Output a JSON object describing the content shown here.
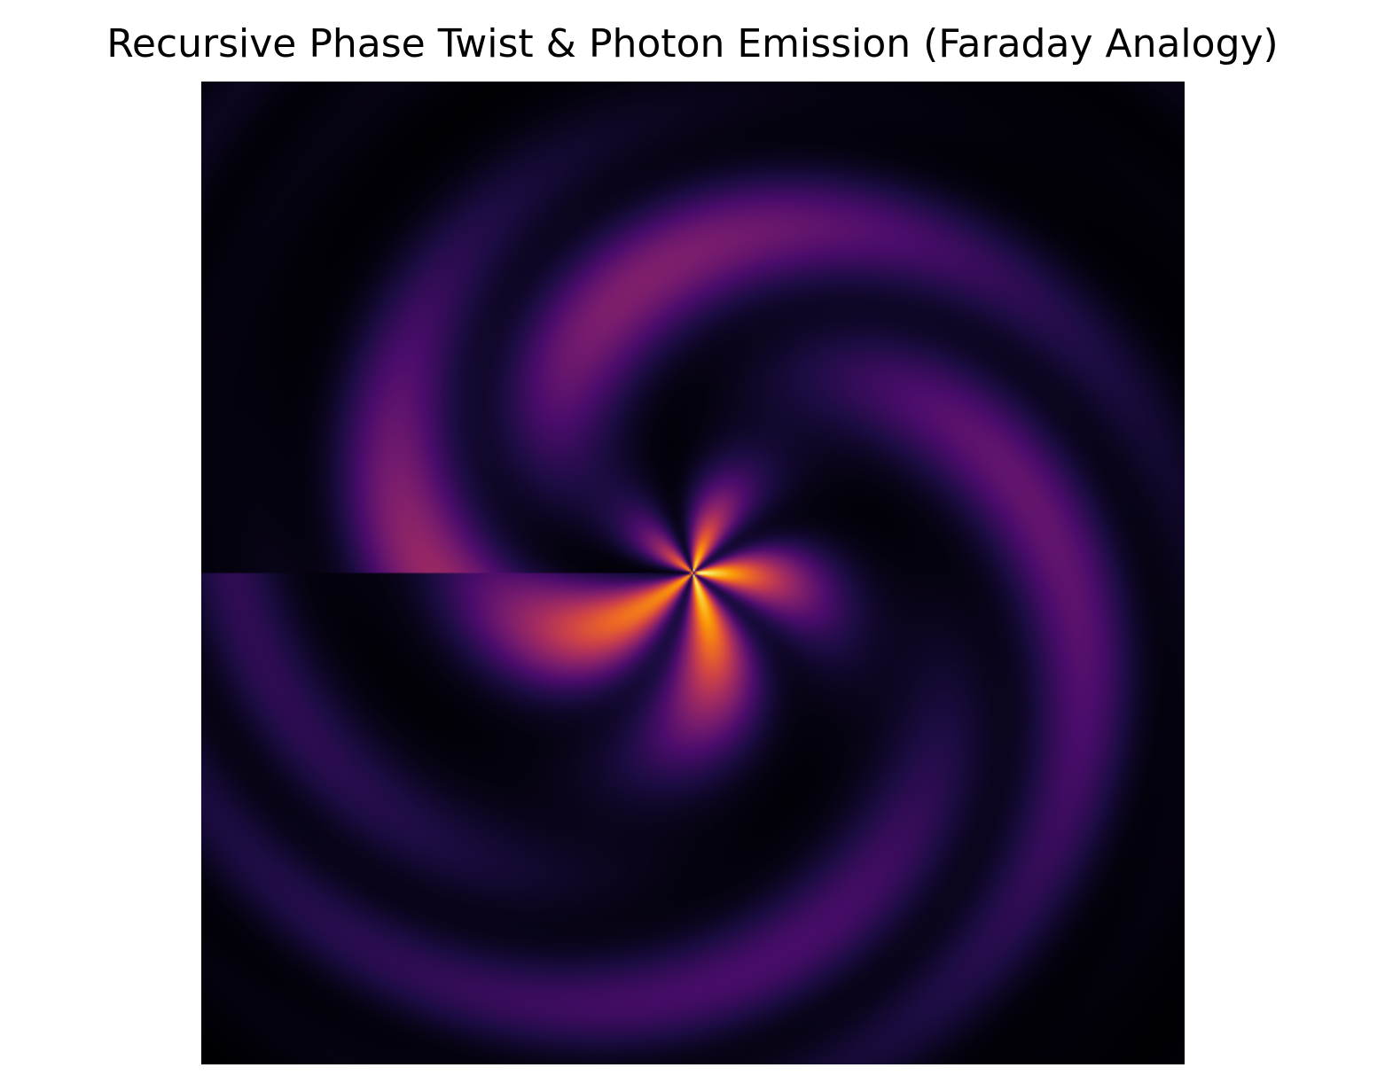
{
  "chart_data": {
    "type": "heatmap",
    "title": "Recursive Phase Twist & Photon Emission (Faraday Analogy)",
    "xlabel": "",
    "ylabel": "",
    "axes_visible": false,
    "grid": false,
    "colormap": "inferno",
    "colormap_stops": [
      "#000004",
      "#1b0c41",
      "#4a0c6b",
      "#781c6d",
      "#a52c60",
      "#cf4446",
      "#ed6925",
      "#fb9b06",
      "#f7d13d",
      "#fcffa4"
    ],
    "x_range": [
      -3,
      3
    ],
    "y_range": [
      -3,
      3
    ],
    "pattern": {
      "spiral_arms": 5,
      "twist_rate": 1.2,
      "ring_frequency": 2.6,
      "envelope_scale": 2.6,
      "phase_branch_cut": "negative x-axis"
    }
  }
}
